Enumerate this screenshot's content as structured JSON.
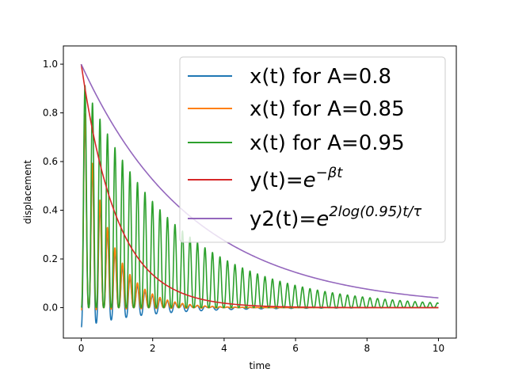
{
  "chart_data": {
    "type": "line",
    "title": "",
    "xlabel": "time",
    "ylabel": "displacement",
    "xlim": [
      -0.5,
      10.5
    ],
    "ylim": [
      -0.125,
      1.075
    ],
    "xticks": [
      0,
      2,
      4,
      6,
      8,
      10
    ],
    "yticks": [
      0.0,
      0.2,
      0.4,
      0.6,
      0.8,
      1.0
    ],
    "xtick_labels": [
      "0",
      "2",
      "4",
      "6",
      "8",
      "10"
    ],
    "ytick_labels": [
      "0.0",
      "0.2",
      "0.4",
      "0.6",
      "0.8",
      "1.0"
    ],
    "grid": false,
    "legend_position": "top-right",
    "x_domain": [
      0,
      10
    ],
    "series": [
      {
        "name": "x(t) for A=0.8",
        "legend": {
          "pre": "x(t) for A=0.8",
          "base": "",
          "exp": ""
        },
        "color": "#1f77b4",
        "model": {
          "kind": "oscillation",
          "amp": 0.9,
          "rate": 1.45,
          "period": 0.21,
          "floor": -0.08,
          "peakShape": 0.6
        }
      },
      {
        "name": "x(t) for A=0.85",
        "legend": {
          "pre": "x(t) for A=0.85",
          "base": "",
          "exp": ""
        },
        "color": "#ff7f0e",
        "model": {
          "kind": "oscillation",
          "amp": 0.92,
          "rate": 1.4,
          "period": 0.21,
          "floor": -0.01,
          "peakShape": 0.6
        }
      },
      {
        "name": "x(t) for A=0.95",
        "legend": {
          "pre": "x(t) for A=0.95",
          "base": "",
          "exp": ""
        },
        "color": "#2ca02c",
        "model": {
          "kind": "oscillation",
          "amp": 0.95,
          "rate": 0.39,
          "period": 0.21,
          "floor": 0.0,
          "peakShape": 0.6
        }
      },
      {
        "name": "y(t)=e^{-βt}",
        "legend": {
          "pre": "y(t)=",
          "base": "e",
          "exp": "−βt"
        },
        "color": "#d62728",
        "model": {
          "kind": "exp",
          "amp": 1.0,
          "rate": 1.0
        }
      },
      {
        "name": "y2(t)=e^{2log(0.95)t/τ}",
        "legend": {
          "pre": "y2(t)=",
          "base": "e",
          "exp": "2log(0.95)t/τ"
        },
        "color": "#9467bd",
        "model": {
          "kind": "exp",
          "amp": 1.0,
          "rate": 0.3219
        }
      }
    ]
  }
}
